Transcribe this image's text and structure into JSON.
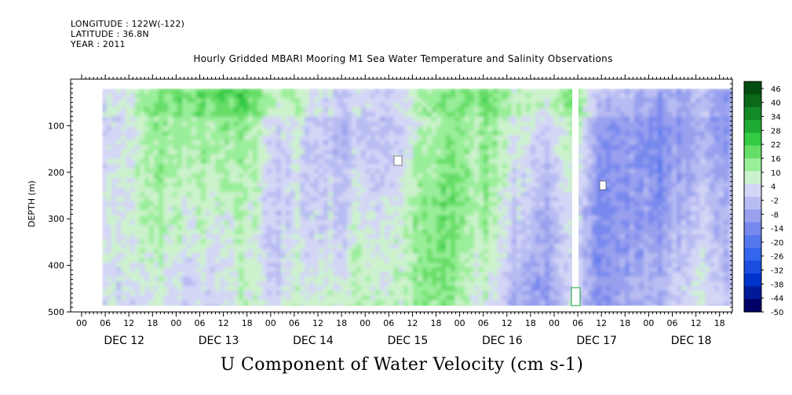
{
  "header": {
    "longitude": "LONGITUDE : 122W(-122)",
    "latitude": "LATITUDE : 36.8N",
    "year": "YEAR : 2011"
  },
  "chart_data": {
    "type": "heatmap",
    "title": "Hourly Gridded MBARI Mooring M1 Sea Water Temperature and Salinity Observations",
    "subtitle": "U Component of Water Velocity (cm s-1)",
    "ylabel": "DEPTH (m)",
    "yticks": [
      100,
      200,
      300,
      400,
      500
    ],
    "ylim": [
      500,
      0
    ],
    "hour_ticks": [
      "00",
      "06",
      "12",
      "18",
      "00",
      "06",
      "12",
      "18",
      "00",
      "06",
      "12",
      "18",
      "00",
      "06",
      "12",
      "18",
      "00",
      "06",
      "12",
      "18",
      "00",
      "06",
      "12",
      "18",
      "00",
      "06",
      "12",
      "18"
    ],
    "day_labels": [
      "DEC 12",
      "DEC 13",
      "DEC 14",
      "DEC 15",
      "DEC 16",
      "DEC 17",
      "DEC 18"
    ],
    "colorbar": {
      "ticks": [
        46,
        40,
        34,
        28,
        22,
        16,
        10,
        4,
        -2,
        -8,
        -14,
        -20,
        -26,
        -32,
        -38,
        -44,
        -50
      ],
      "min": -50,
      "max": 49,
      "colors": [
        "#000066",
        "#001a99",
        "#0033cc",
        "#1a4ddd",
        "#3366ee",
        "#5577ee",
        "#7788ee",
        "#99a0ee",
        "#b8bcf2",
        "#d4d6f6",
        "#ccf2cc",
        "#99ee99",
        "#66dd66",
        "#33cc44",
        "#1faa33",
        "#138a26",
        "#0a6a1a",
        "#034d10"
      ]
    },
    "gap_label": "",
    "missing_regions": "white gaps near DEC 17 00-06 and small holes"
  }
}
